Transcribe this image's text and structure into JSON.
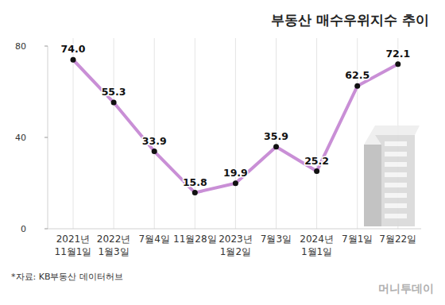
{
  "chart_data": {
    "type": "line",
    "title": "부동산 매수우위지수 추이",
    "categories": [
      "2021년\n11월1일",
      "2022년\n1월3일",
      "7월4일",
      "11월28일",
      "2023년\n1월2일",
      "7월3일",
      "2024년\n1월1일",
      "7월1일",
      "7월22일"
    ],
    "values": [
      74.0,
      55.3,
      33.9,
      15.8,
      19.9,
      35.9,
      25.2,
      62.5,
      72.1
    ],
    "value_labels": [
      "74.0",
      "55.3",
      "33.9",
      "15.8",
      "19.9",
      "35.9",
      "25.2",
      "62.5",
      "72.1"
    ],
    "color": "#c98fd6",
    "marker": "circle",
    "line_style": "solid",
    "ylim": [
      0,
      80
    ],
    "yticks": [
      0,
      40,
      80
    ],
    "grid": true,
    "data_labels": true,
    "source": "*자료: KB부동산 데이터허브",
    "credit": "머니투데이"
  }
}
